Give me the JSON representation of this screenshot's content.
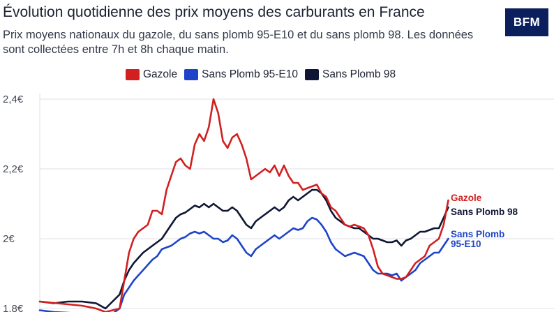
{
  "header": {
    "title": "Évolution quotidienne des prix moyens des carburants en France",
    "subtitle": "Prix moyens nationaux du gazole, du sans plomb 95-E10 et du sans plomb 98. Les données sont collectées entre 7h et 8h chaque matin.",
    "logo": "BFM"
  },
  "legend": [
    {
      "label": "Gazole",
      "color": "#d21f1f"
    },
    {
      "label": "Sans Plomb 95-E10",
      "color": "#1d44c8"
    },
    {
      "label": "Sans Plomb 98",
      "color": "#0e1633"
    }
  ],
  "chart_data": {
    "type": "line",
    "title": "Évolution quotidienne des prix moyens des carburants en France",
    "xlabel": "",
    "ylabel": "",
    "ylim": [
      1.8,
      2.4
    ],
    "yticks": [
      {
        "value": 2.4,
        "label": "2,4€"
      },
      {
        "value": 2.2,
        "label": "2,2€"
      },
      {
        "value": 2.0,
        "label": "2€"
      },
      {
        "value": 1.8,
        "label": "1,8€"
      }
    ],
    "grid": "horizontal",
    "legend_position": "top",
    "x_range": [
      0,
      100
    ],
    "series": [
      {
        "name": "Gazole",
        "end_label": "Gazole",
        "color": "#d21f1f",
        "points": [
          [
            0,
            1.82
          ],
          [
            3,
            1.816
          ],
          [
            6,
            1.812
          ],
          [
            9,
            1.808
          ],
          [
            12,
            1.8
          ],
          [
            14,
            1.79
          ],
          [
            17,
            1.8
          ],
          [
            18,
            1.88
          ],
          [
            19,
            1.96
          ],
          [
            20,
            2.0
          ],
          [
            21,
            2.02
          ],
          [
            22,
            2.03
          ],
          [
            23,
            2.04
          ],
          [
            24,
            2.08
          ],
          [
            25,
            2.08
          ],
          [
            26,
            2.07
          ],
          [
            27,
            2.14
          ],
          [
            28,
            2.18
          ],
          [
            29,
            2.22
          ],
          [
            30,
            2.23
          ],
          [
            31,
            2.21
          ],
          [
            32,
            2.2
          ],
          [
            33,
            2.27
          ],
          [
            34,
            2.3
          ],
          [
            35,
            2.28
          ],
          [
            36,
            2.32
          ],
          [
            37,
            2.4
          ],
          [
            38,
            2.36
          ],
          [
            39,
            2.28
          ],
          [
            40,
            2.26
          ],
          [
            41,
            2.29
          ],
          [
            42,
            2.3
          ],
          [
            43,
            2.27
          ],
          [
            44,
            2.23
          ],
          [
            45,
            2.17
          ],
          [
            46,
            2.18
          ],
          [
            47,
            2.19
          ],
          [
            48,
            2.2
          ],
          [
            49,
            2.19
          ],
          [
            50,
            2.21
          ],
          [
            51,
            2.18
          ],
          [
            52,
            2.21
          ],
          [
            53,
            2.18
          ],
          [
            54,
            2.16
          ],
          [
            55,
            2.16
          ],
          [
            56,
            2.14
          ],
          [
            57,
            2.145
          ],
          [
            58,
            2.15
          ],
          [
            59,
            2.155
          ],
          [
            60,
            2.13
          ],
          [
            61,
            2.12
          ],
          [
            62,
            2.09
          ],
          [
            63,
            2.08
          ],
          [
            64,
            2.06
          ],
          [
            65,
            2.04
          ],
          [
            66,
            2.035
          ],
          [
            67,
            2.04
          ],
          [
            68,
            2.035
          ],
          [
            69,
            2.03
          ],
          [
            70,
            2.01
          ],
          [
            71,
            1.97
          ],
          [
            72,
            1.92
          ],
          [
            73,
            1.9
          ],
          [
            74,
            1.895
          ],
          [
            75,
            1.89
          ],
          [
            76,
            1.885
          ],
          [
            77,
            1.885
          ],
          [
            78,
            1.89
          ],
          [
            79,
            1.91
          ],
          [
            80,
            1.93
          ],
          [
            81,
            1.94
          ],
          [
            82,
            1.95
          ],
          [
            83,
            1.98
          ],
          [
            84,
            1.99
          ],
          [
            85,
            2.0
          ],
          [
            86,
            2.04
          ],
          [
            87,
            2.11
          ]
        ]
      },
      {
        "name": "Sans Plomb 95-E10",
        "end_label": "Sans Plomb 95-E10",
        "color": "#1d44c8",
        "points": [
          [
            0,
            1.795
          ],
          [
            3,
            1.79
          ],
          [
            6,
            1.788
          ],
          [
            9,
            1.785
          ],
          [
            12,
            1.78
          ],
          [
            14,
            1.77
          ],
          [
            17,
            1.8
          ],
          [
            18,
            1.84
          ],
          [
            19,
            1.86
          ],
          [
            20,
            1.88
          ],
          [
            21,
            1.895
          ],
          [
            22,
            1.91
          ],
          [
            23,
            1.925
          ],
          [
            24,
            1.94
          ],
          [
            25,
            1.95
          ],
          [
            26,
            1.97
          ],
          [
            27,
            1.975
          ],
          [
            28,
            1.98
          ],
          [
            29,
            1.99
          ],
          [
            30,
            2.0
          ],
          [
            31,
            2.005
          ],
          [
            32,
            2.015
          ],
          [
            33,
            2.02
          ],
          [
            34,
            2.015
          ],
          [
            35,
            2.02
          ],
          [
            36,
            2.01
          ],
          [
            37,
            2.0
          ],
          [
            38,
            2.0
          ],
          [
            39,
            1.99
          ],
          [
            40,
            1.995
          ],
          [
            41,
            2.01
          ],
          [
            42,
            2.0
          ],
          [
            43,
            1.98
          ],
          [
            44,
            1.96
          ],
          [
            45,
            1.95
          ],
          [
            46,
            1.97
          ],
          [
            47,
            1.98
          ],
          [
            48,
            1.99
          ],
          [
            49,
            2.0
          ],
          [
            50,
            2.01
          ],
          [
            51,
            2.0
          ],
          [
            52,
            2.01
          ],
          [
            53,
            2.02
          ],
          [
            54,
            2.03
          ],
          [
            55,
            2.025
          ],
          [
            56,
            2.03
          ],
          [
            57,
            2.05
          ],
          [
            58,
            2.06
          ],
          [
            59,
            2.055
          ],
          [
            60,
            2.04
          ],
          [
            61,
            2.02
          ],
          [
            62,
            1.99
          ],
          [
            63,
            1.97
          ],
          [
            64,
            1.96
          ],
          [
            65,
            1.95
          ],
          [
            66,
            1.955
          ],
          [
            67,
            1.96
          ],
          [
            68,
            1.955
          ],
          [
            69,
            1.95
          ],
          [
            70,
            1.93
          ],
          [
            71,
            1.91
          ],
          [
            72,
            1.9
          ],
          [
            73,
            1.9
          ],
          [
            74,
            1.9
          ],
          [
            75,
            1.895
          ],
          [
            76,
            1.9
          ],
          [
            77,
            1.88
          ],
          [
            78,
            1.89
          ],
          [
            79,
            1.9
          ],
          [
            80,
            1.91
          ],
          [
            81,
            1.93
          ],
          [
            82,
            1.94
          ],
          [
            83,
            1.95
          ],
          [
            84,
            1.96
          ],
          [
            85,
            1.96
          ],
          [
            86,
            1.98
          ],
          [
            87,
            2.0
          ]
        ]
      },
      {
        "name": "Sans Plomb 98",
        "end_label": "Sans Plomb 98",
        "color": "#0e1633",
        "points": [
          [
            0,
            1.82
          ],
          [
            3,
            1.815
          ],
          [
            6,
            1.82
          ],
          [
            9,
            1.82
          ],
          [
            12,
            1.815
          ],
          [
            14,
            1.8
          ],
          [
            17,
            1.84
          ],
          [
            18,
            1.88
          ],
          [
            19,
            1.91
          ],
          [
            20,
            1.93
          ],
          [
            21,
            1.945
          ],
          [
            22,
            1.96
          ],
          [
            23,
            1.97
          ],
          [
            24,
            1.98
          ],
          [
            25,
            1.99
          ],
          [
            26,
            2.0
          ],
          [
            27,
            2.02
          ],
          [
            28,
            2.04
          ],
          [
            29,
            2.06
          ],
          [
            30,
            2.07
          ],
          [
            31,
            2.075
          ],
          [
            32,
            2.085
          ],
          [
            33,
            2.095
          ],
          [
            34,
            2.09
          ],
          [
            35,
            2.1
          ],
          [
            36,
            2.09
          ],
          [
            37,
            2.1
          ],
          [
            38,
            2.09
          ],
          [
            39,
            2.08
          ],
          [
            40,
            2.08
          ],
          [
            41,
            2.09
          ],
          [
            42,
            2.08
          ],
          [
            43,
            2.06
          ],
          [
            44,
            2.04
          ],
          [
            45,
            2.03
          ],
          [
            46,
            2.05
          ],
          [
            47,
            2.06
          ],
          [
            48,
            2.07
          ],
          [
            49,
            2.08
          ],
          [
            50,
            2.09
          ],
          [
            51,
            2.08
          ],
          [
            52,
            2.09
          ],
          [
            53,
            2.11
          ],
          [
            54,
            2.12
          ],
          [
            55,
            2.11
          ],
          [
            56,
            2.12
          ],
          [
            57,
            2.13
          ],
          [
            58,
            2.14
          ],
          [
            59,
            2.14
          ],
          [
            60,
            2.13
          ],
          [
            61,
            2.11
          ],
          [
            62,
            2.08
          ],
          [
            63,
            2.06
          ],
          [
            64,
            2.05
          ],
          [
            65,
            2.04
          ],
          [
            66,
            2.035
          ],
          [
            67,
            2.03
          ],
          [
            68,
            2.03
          ],
          [
            69,
            2.02
          ],
          [
            70,
            2.01
          ],
          [
            71,
            2.0
          ],
          [
            72,
            2.0
          ],
          [
            73,
            1.995
          ],
          [
            74,
            1.99
          ],
          [
            75,
            1.99
          ],
          [
            76,
            1.995
          ],
          [
            77,
            1.98
          ],
          [
            78,
            1.995
          ],
          [
            79,
            2.0
          ],
          [
            80,
            2.01
          ],
          [
            81,
            2.02
          ],
          [
            82,
            2.02
          ],
          [
            83,
            2.025
          ],
          [
            84,
            2.03
          ],
          [
            85,
            2.03
          ],
          [
            86,
            2.06
          ],
          [
            87,
            2.09
          ]
        ]
      }
    ]
  }
}
